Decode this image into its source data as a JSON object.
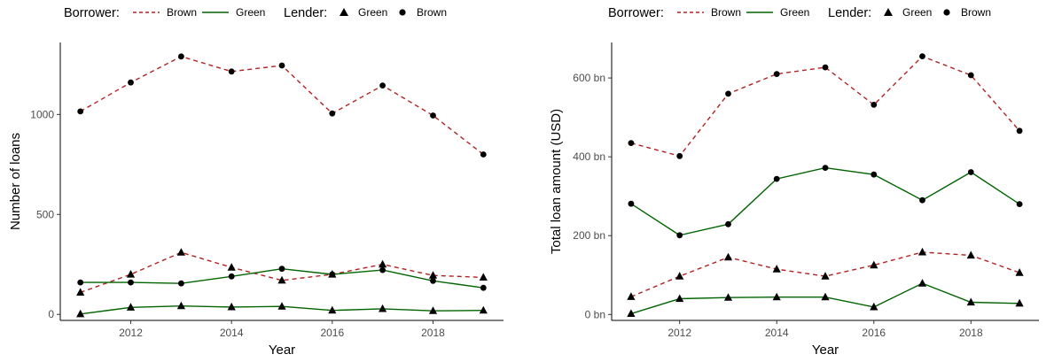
{
  "legend": {
    "borrower_title": "Borrower:",
    "lender_title": "Lender:",
    "borrower_items": [
      {
        "label": "Brown",
        "color": "#b22222",
        "dash": true
      },
      {
        "label": "Green",
        "color": "#006400",
        "dash": false
      }
    ],
    "lender_items": [
      {
        "label": "Green",
        "shape": "triangle"
      },
      {
        "label": "Brown",
        "shape": "circle"
      }
    ]
  },
  "chart_data": [
    {
      "type": "line",
      "title": "",
      "xlabel": "Year",
      "ylabel": "Number of loans",
      "xlim": [
        2010.6,
        2019.4
      ],
      "ylim": [
        -30,
        1360
      ],
      "xticks": [
        2012,
        2014,
        2016,
        2018
      ],
      "yticks": [
        0,
        500,
        1000
      ],
      "ytick_labels": [
        "0",
        "500",
        "1000"
      ],
      "x": [
        2011,
        2012,
        2013,
        2014,
        2015,
        2016,
        2017,
        2018,
        2019
      ],
      "series": [
        {
          "borrower": "Brown",
          "lender": "Brown",
          "values": [
            1015,
            1160,
            1290,
            1215,
            1245,
            1005,
            1145,
            995,
            800
          ]
        },
        {
          "borrower": "Brown",
          "lender": "Green",
          "values": [
            110,
            200,
            310,
            235,
            170,
            200,
            250,
            195,
            185
          ]
        },
        {
          "borrower": "Green",
          "lender": "Brown",
          "values": [
            160,
            160,
            155,
            190,
            228,
            200,
            222,
            168,
            133
          ]
        },
        {
          "borrower": "Green",
          "lender": "Green",
          "values": [
            2,
            35,
            42,
            37,
            40,
            20,
            28,
            18,
            20
          ]
        }
      ]
    },
    {
      "type": "line",
      "title": "",
      "xlabel": "Year",
      "ylabel": "Total loan amount (USD)",
      "xlim": [
        2010.6,
        2019.4
      ],
      "ylim": [
        -15,
        690
      ],
      "xticks": [
        2012,
        2014,
        2016,
        2018
      ],
      "yticks": [
        0,
        200,
        400,
        600
      ],
      "ytick_labels": [
        "0 bn",
        "200 bn",
        "400 bn",
        "600 bn"
      ],
      "x": [
        2011,
        2012,
        2013,
        2014,
        2015,
        2016,
        2017,
        2018,
        2019
      ],
      "series": [
        {
          "borrower": "Brown",
          "lender": "Brown",
          "values": [
            435,
            402,
            560,
            610,
            627,
            532,
            655,
            607,
            466
          ]
        },
        {
          "borrower": "Brown",
          "lender": "Green",
          "values": [
            45,
            97,
            145,
            115,
            97,
            125,
            158,
            150,
            106
          ]
        },
        {
          "borrower": "Green",
          "lender": "Brown",
          "values": [
            281,
            201,
            229,
            344,
            372,
            355,
            290,
            361,
            280
          ]
        },
        {
          "borrower": "Green",
          "lender": "Green",
          "values": [
            2,
            40,
            43,
            44,
            44,
            19,
            79,
            31,
            28
          ]
        }
      ]
    }
  ]
}
